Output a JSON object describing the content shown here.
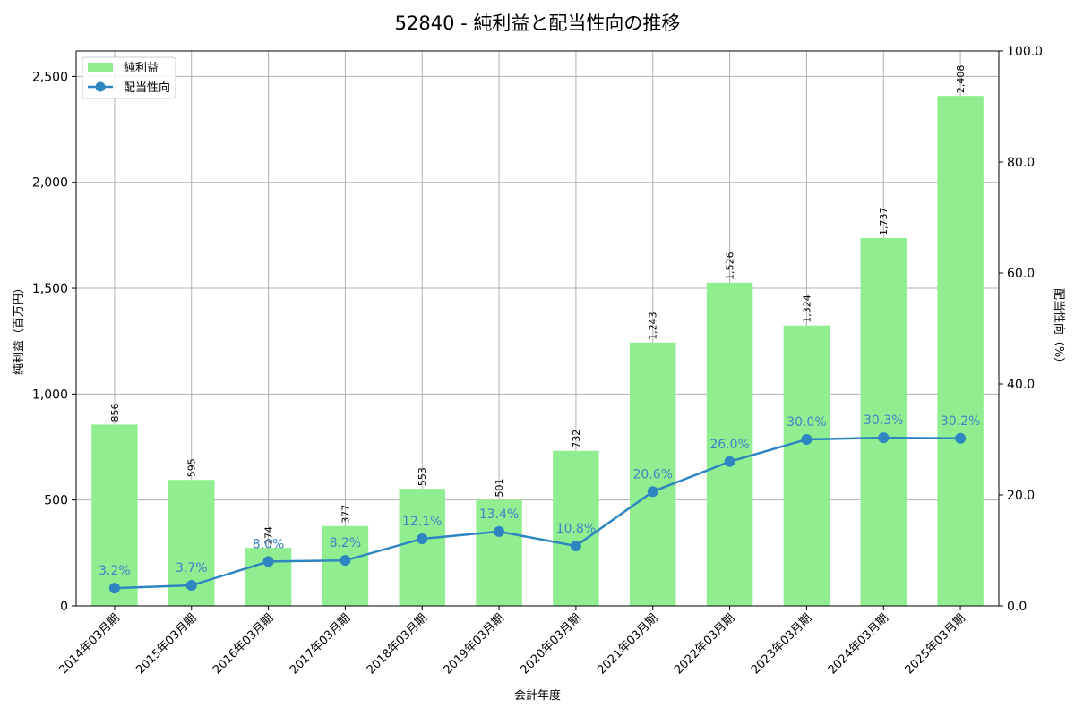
{
  "chart_data": {
    "type": "bar+line",
    "title": "52840 - 純利益と配当性向の推移",
    "xlabel": "会計年度",
    "ylabel_left": "純利益（百万円）",
    "ylabel_right": "配当性向（%）",
    "categories": [
      "2014年03月期",
      "2015年03月期",
      "2016年03月期",
      "2017年03月期",
      "2018年03月期",
      "2019年03月期",
      "2020年03月期",
      "2021年03月期",
      "2022年03月期",
      "2023年03月期",
      "2024年03月期",
      "2025年03月期"
    ],
    "series": [
      {
        "name": "純利益",
        "type": "bar",
        "axis": "left",
        "color": "#90ee90",
        "values": [
          856,
          595,
          274,
          377,
          553,
          501,
          732,
          1243,
          1526,
          1324,
          1737,
          2408
        ],
        "labels": [
          "856",
          "595",
          "274",
          "377",
          "553",
          "501",
          "732",
          "1,243",
          "1,526",
          "1,324",
          "1,737",
          "2,408"
        ]
      },
      {
        "name": "配当性向",
        "type": "line",
        "axis": "right",
        "color": "#2e86c1",
        "values": [
          3.2,
          3.7,
          8.0,
          8.2,
          12.1,
          13.4,
          10.8,
          20.6,
          26.0,
          30.0,
          30.3,
          30.2
        ],
        "labels": [
          "3.2%",
          "3.7%",
          "8.0%",
          "8.2%",
          "12.1%",
          "13.4%",
          "10.8%",
          "20.6%",
          "26.0%",
          "30.0%",
          "30.3%",
          "30.2%"
        ]
      }
    ],
    "ylim_left": [
      0,
      2620
    ],
    "yticks_left": [
      0,
      500,
      1000,
      1500,
      2000,
      2500
    ],
    "yticklabels_left": [
      "0",
      "500",
      "1,000",
      "1,500",
      "2,000",
      "2,500"
    ],
    "ylim_right": [
      0,
      100
    ],
    "yticks_right": [
      0,
      20,
      40,
      60,
      80,
      100
    ],
    "yticklabels_right": [
      "0.0",
      "20.0",
      "40.0",
      "60.0",
      "80.0",
      "100.0"
    ],
    "grid": true,
    "legend": "top-left"
  }
}
